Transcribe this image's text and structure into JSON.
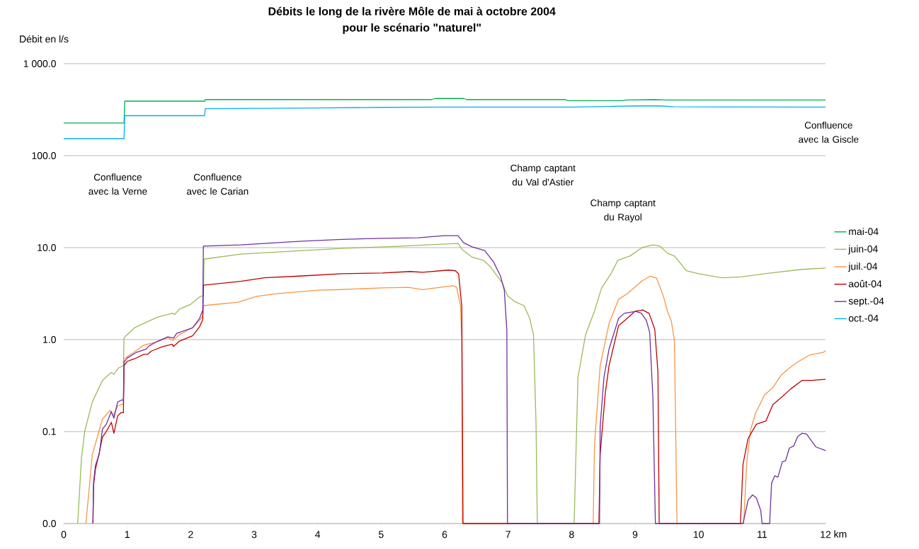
{
  "chart_data": {
    "type": "line",
    "title": "Débits le long de la rivère Môle de mai à octobre 2004",
    "subtitle": "pour le scénario \"naturel\"",
    "xlabel": "km",
    "ylabel": "Débit en l/s",
    "log": "y",
    "grid": "y",
    "legend": "right",
    "marker": "none",
    "line_style": "solid",
    "xlim": [
      0,
      12
    ],
    "xticks": [
      0,
      1,
      2,
      3,
      4,
      5,
      6,
      7,
      8,
      9,
      10,
      11,
      12
    ],
    "ylim": [
      0.01,
      1000
    ],
    "yticks": [
      {
        "value": 0.01,
        "label": "0.0"
      },
      {
        "value": 0.1,
        "label": "0.1"
      },
      {
        "value": 1,
        "label": "1.0"
      },
      {
        "value": 10,
        "label": "10.0"
      },
      {
        "value": 100,
        "label": "100.0"
      },
      {
        "value": 1000,
        "label": "1 000.0"
      }
    ],
    "annotations": [
      "Confluence avec la Verne",
      "Confluence avec le Carian",
      "Champ captant du Val d'Astier",
      "Champ captant du Rayol",
      "Confluence avec la Giscle"
    ],
    "series": [
      {
        "name": "mai-04",
        "color": "#00b050",
        "x": [
          0,
          0.95,
          0.96,
          2.22,
          2.23,
          5.8,
          5.85,
          6.3,
          6.35,
          7.9,
          7.95,
          8.8,
          8.85,
          9.3,
          9.5,
          12
        ],
        "values": [
          226,
          226,
          391,
          391,
          407,
          407,
          418,
          418,
          407,
          407,
          395,
          395,
          403,
          407,
          403,
          403
        ]
      },
      {
        "name": "juin-04",
        "color": "#9bbb59",
        "x": [
          0.22,
          0.28,
          0.33,
          0.45,
          0.61,
          0.75,
          0.79,
          0.86,
          0.94,
          0.95,
          1.12,
          1.26,
          1.48,
          1.71,
          1.75,
          1.82,
          2.0,
          2.15,
          2.2,
          2.21,
          2.79,
          4.38,
          5.2,
          6.21,
          6.28,
          6.43,
          6.61,
          6.72,
          6.91,
          6.99,
          7.1,
          7.25,
          7.34,
          7.4,
          7.44,
          7.46,
          8.04,
          8.1,
          8.22,
          8.36,
          8.47,
          8.62,
          8.73,
          8.92,
          9.11,
          9.28,
          9.39,
          9.51,
          9.62,
          9.81,
          10.0,
          10.37,
          10.67,
          11.04,
          11.63,
          12.0
        ],
        "values": [
          0.01,
          0.052,
          0.1,
          0.21,
          0.36,
          0.44,
          0.42,
          0.49,
          0.52,
          1.05,
          1.35,
          1.5,
          1.76,
          1.93,
          1.88,
          2.14,
          2.42,
          2.94,
          3.0,
          7.5,
          8.5,
          9.8,
          10.3,
          11.1,
          9.5,
          7.9,
          7.3,
          6.2,
          4.1,
          3.0,
          2.6,
          2.34,
          1.7,
          1.13,
          0.12,
          0.01,
          0.01,
          0.39,
          1.13,
          2.03,
          3.6,
          5.2,
          7.3,
          8.1,
          10,
          10.7,
          10.4,
          8.7,
          8.1,
          5.6,
          5.2,
          4.7,
          4.8,
          5.2,
          5.8,
          6.0
        ]
      },
      {
        "name": "juil.-04",
        "color": "#f79646",
        "x": [
          0.35,
          0.45,
          0.61,
          0.73,
          0.78,
          0.85,
          0.94,
          0.95,
          1.12,
          1.26,
          1.48,
          1.64,
          1.72,
          1.82,
          2.03,
          2.14,
          2.19,
          2.2,
          2.75,
          3.04,
          3.35,
          4.01,
          4.38,
          5.02,
          5.43,
          5.65,
          6.13,
          6.19,
          6.25,
          6.27,
          6.28,
          8.34,
          8.36,
          8.45,
          8.59,
          8.74,
          8.89,
          9.11,
          9.24,
          9.34,
          9.45,
          9.51,
          9.57,
          9.62,
          9.66,
          10.71,
          10.76,
          10.82,
          10.9,
          11.04,
          11.17,
          11.3,
          11.43,
          11.56,
          11.75,
          11.97,
          12.0
        ],
        "values": [
          0.01,
          0.056,
          0.137,
          0.17,
          0.148,
          0.19,
          0.2,
          0.62,
          0.74,
          0.87,
          0.95,
          1.05,
          0.98,
          1.13,
          1.35,
          1.61,
          1.8,
          2.34,
          2.55,
          2.95,
          3.16,
          3.45,
          3.5,
          3.65,
          3.7,
          3.5,
          3.85,
          3.7,
          2.3,
          1.0,
          0.01,
          0.01,
          0.07,
          0.52,
          1.5,
          2.74,
          3.2,
          4.35,
          4.9,
          4.65,
          2.9,
          2.03,
          1.6,
          0.97,
          0.01,
          0.01,
          0.047,
          0.105,
          0.16,
          0.25,
          0.3,
          0.41,
          0.49,
          0.57,
          0.68,
          0.73,
          0.76
        ]
      },
      {
        "name": "août-04",
        "color": "#c00000",
        "x": [
          0.46,
          0.47,
          0.5,
          0.56,
          0.61,
          0.67,
          0.75,
          0.79,
          0.85,
          0.9,
          0.94,
          0.95,
          1.0,
          1.12,
          1.26,
          1.32,
          1.38,
          1.56,
          1.71,
          1.73,
          1.82,
          2.03,
          2.14,
          2.19,
          2.2,
          2.79,
          3.16,
          3.71,
          4.38,
          5.02,
          5.46,
          5.65,
          6.06,
          6.17,
          6.22,
          6.27,
          6.29,
          8.43,
          8.45,
          8.53,
          8.59,
          8.74,
          8.85,
          9.0,
          9.12,
          9.22,
          9.31,
          9.36,
          9.38,
          10.66,
          10.7,
          10.78,
          10.91,
          11.06,
          11.17,
          11.32,
          11.45,
          11.63,
          11.79,
          12.0
        ],
        "values": [
          0.01,
          0.026,
          0.039,
          0.059,
          0.087,
          0.1,
          0.126,
          0.096,
          0.148,
          0.16,
          0.16,
          0.52,
          0.58,
          0.62,
          0.69,
          0.69,
          0.75,
          0.84,
          0.89,
          0.84,
          0.96,
          1.1,
          1.38,
          1.65,
          3.9,
          4.3,
          4.7,
          4.9,
          5.2,
          5.3,
          5.5,
          5.4,
          5.7,
          5.6,
          5.2,
          2.3,
          0.01,
          0.01,
          0.056,
          0.26,
          0.52,
          1.42,
          1.64,
          2.03,
          2.1,
          1.93,
          1.3,
          0.44,
          0.01,
          0.01,
          0.044,
          0.084,
          0.12,
          0.13,
          0.196,
          0.24,
          0.29,
          0.36,
          0.36,
          0.37
        ]
      },
      {
        "name": "sept.-04",
        "color": "#7030a0",
        "x": [
          0.46,
          0.47,
          0.5,
          0.56,
          0.61,
          0.67,
          0.75,
          0.79,
          0.85,
          0.91,
          0.94,
          0.95,
          1.0,
          1.15,
          1.3,
          1.34,
          1.48,
          1.64,
          1.73,
          1.78,
          2.03,
          2.14,
          2.19,
          2.2,
          2.79,
          3.71,
          4.38,
          5.02,
          5.58,
          5.99,
          6.21,
          6.3,
          6.43,
          6.63,
          6.77,
          6.88,
          6.94,
          6.98,
          6.99,
          8.44,
          8.45,
          8.51,
          8.59,
          8.74,
          8.83,
          9.01,
          9.1,
          9.18,
          9.23,
          9.28,
          9.32,
          10.7,
          10.78,
          10.85,
          10.91,
          10.98,
          11.0,
          11.12,
          11.15,
          11.2,
          11.25,
          11.32,
          11.37,
          11.43,
          11.5,
          11.56,
          11.63,
          11.7,
          11.85,
          12.0
        ],
        "values": [
          0.01,
          0.028,
          0.043,
          0.057,
          0.106,
          0.12,
          0.165,
          0.14,
          0.21,
          0.22,
          0.22,
          0.57,
          0.63,
          0.73,
          0.79,
          0.85,
          0.96,
          1.07,
          1.04,
          1.17,
          1.34,
          1.7,
          2.1,
          10.4,
          10.7,
          11.7,
          12.3,
          12.6,
          12.8,
          13.5,
          13.5,
          11.3,
          10.2,
          9.3,
          7.0,
          4.9,
          3.45,
          1.26,
          0.01,
          0.01,
          0.113,
          0.39,
          0.79,
          1.7,
          1.93,
          2.03,
          1.93,
          1.6,
          1.19,
          0.24,
          0.01,
          0.01,
          0.018,
          0.0205,
          0.019,
          0.0138,
          0.01,
          0.01,
          0.0275,
          0.033,
          0.032,
          0.047,
          0.048,
          0.066,
          0.07,
          0.088,
          0.096,
          0.094,
          0.068,
          0.062
        ]
      },
      {
        "name": "oct.-04",
        "color": "#00b0f0",
        "x": [
          0,
          0.95,
          0.96,
          2.22,
          2.23,
          4.0,
          5.0,
          6.0,
          8.0,
          8.5,
          9.0,
          9.4,
          9.6,
          12
        ],
        "values": [
          153,
          153,
          272,
          272,
          324,
          330,
          335,
          337,
          337,
          342,
          347,
          347,
          340,
          337
        ]
      }
    ]
  }
}
